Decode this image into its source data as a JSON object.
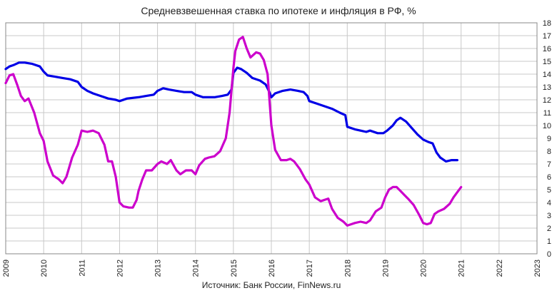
{
  "chart_data": {
    "type": "line",
    "title": "Средневзвешенная ставка по ипотеке и инфляция в РФ, %",
    "source": "Источник: Банк России, FinNews.ru",
    "xlabel": "",
    "ylabel": "",
    "xlim": [
      2009,
      2023
    ],
    "ylim": [
      0,
      18
    ],
    "x_ticks": [
      "2009",
      "2010",
      "2011",
      "2012",
      "2013",
      "2014",
      "2015",
      "2016",
      "2017",
      "2018",
      "2019",
      "2020",
      "2021",
      "2022",
      "2023"
    ],
    "y_ticks": [
      "0",
      "1",
      "2",
      "3",
      "4",
      "5",
      "6",
      "7",
      "8",
      "9",
      "10",
      "11",
      "12",
      "13",
      "14",
      "15",
      "16",
      "17",
      "18"
    ],
    "y_axis_side": "right",
    "grid": true,
    "legend": "none",
    "series": [
      {
        "color": "#0000e6",
        "x": [
          2009.0,
          2009.1,
          2009.2,
          2009.35,
          2009.5,
          2009.7,
          2009.9,
          2010.0,
          2010.1,
          2010.3,
          2010.5,
          2010.7,
          2010.9,
          2011.0,
          2011.15,
          2011.3,
          2011.5,
          2011.7,
          2011.9,
          2012.0,
          2012.2,
          2012.5,
          2012.7,
          2012.9,
          2013.0,
          2013.15,
          2013.3,
          2013.5,
          2013.7,
          2013.9,
          2014.0,
          2014.2,
          2014.5,
          2014.7,
          2014.85,
          2014.95,
          2015.0,
          2015.1,
          2015.2,
          2015.35,
          2015.5,
          2015.7,
          2015.85,
          2015.95,
          2016.0,
          2016.1,
          2016.3,
          2016.5,
          2016.7,
          2016.85,
          2016.95,
          2017.0,
          2017.2,
          2017.4,
          2017.6,
          2017.8,
          2017.95,
          2018.0,
          2018.2,
          2018.35,
          2018.5,
          2018.6,
          2018.8,
          2018.95,
          2019.05,
          2019.2,
          2019.3,
          2019.4,
          2019.55,
          2019.7,
          2019.85,
          2020.0,
          2020.15,
          2020.25,
          2020.35,
          2020.45,
          2020.6,
          2020.75,
          2020.9
        ],
        "y": [
          14.4,
          14.6,
          14.7,
          14.9,
          14.9,
          14.8,
          14.6,
          14.2,
          13.9,
          13.8,
          13.7,
          13.6,
          13.4,
          13.0,
          12.7,
          12.5,
          12.3,
          12.1,
          12.0,
          11.9,
          12.1,
          12.2,
          12.3,
          12.4,
          12.7,
          12.9,
          12.8,
          12.7,
          12.6,
          12.6,
          12.4,
          12.2,
          12.2,
          12.3,
          12.4,
          12.8,
          14.1,
          14.5,
          14.4,
          14.1,
          13.7,
          13.5,
          13.2,
          12.6,
          12.2,
          12.5,
          12.7,
          12.8,
          12.7,
          12.6,
          12.3,
          11.9,
          11.7,
          11.5,
          11.3,
          11.0,
          10.8,
          9.9,
          9.7,
          9.6,
          9.5,
          9.6,
          9.4,
          9.4,
          9.6,
          10.0,
          10.4,
          10.6,
          10.3,
          9.8,
          9.3,
          8.9,
          8.7,
          8.6,
          7.9,
          7.5,
          7.2,
          7.3,
          7.3
        ]
      },
      {
        "color": "#cc00cc",
        "x": [
          2009.0,
          2009.1,
          2009.2,
          2009.3,
          2009.4,
          2009.5,
          2009.6,
          2009.75,
          2009.9,
          2010.0,
          2010.1,
          2010.25,
          2010.4,
          2010.5,
          2010.6,
          2010.75,
          2010.9,
          2011.0,
          2011.15,
          2011.3,
          2011.45,
          2011.6,
          2011.7,
          2011.8,
          2011.9,
          2012.0,
          2012.1,
          2012.25,
          2012.35,
          2012.45,
          2012.5,
          2012.6,
          2012.7,
          2012.85,
          2013.0,
          2013.1,
          2013.25,
          2013.35,
          2013.5,
          2013.6,
          2013.75,
          2013.9,
          2014.0,
          2014.1,
          2014.25,
          2014.35,
          2014.5,
          2014.65,
          2014.8,
          2014.9,
          2015.0,
          2015.05,
          2015.15,
          2015.25,
          2015.35,
          2015.45,
          2015.6,
          2015.7,
          2015.8,
          2015.9,
          2016.0,
          2016.1,
          2016.25,
          2016.4,
          2016.5,
          2016.6,
          2016.75,
          2016.9,
          2017.0,
          2017.15,
          2017.3,
          2017.4,
          2017.5,
          2017.6,
          2017.75,
          2017.9,
          2018.0,
          2018.1,
          2018.2,
          2018.35,
          2018.5,
          2018.6,
          2018.75,
          2018.9,
          2019.0,
          2019.1,
          2019.2,
          2019.3,
          2019.4,
          2019.5,
          2019.6,
          2019.75,
          2019.9,
          2020.0,
          2020.1,
          2020.2,
          2020.3,
          2020.4,
          2020.55,
          2020.7,
          2020.8,
          2020.9,
          2021.0
        ],
        "y": [
          13.3,
          13.9,
          14.0,
          13.2,
          12.3,
          11.9,
          12.1,
          11.0,
          9.4,
          8.8,
          7.2,
          6.1,
          5.8,
          5.5,
          6.0,
          7.5,
          8.5,
          9.6,
          9.5,
          9.6,
          9.4,
          8.5,
          7.2,
          7.2,
          6.0,
          4.0,
          3.7,
          3.6,
          3.6,
          4.2,
          4.9,
          5.8,
          6.5,
          6.5,
          7.0,
          7.2,
          7.0,
          7.3,
          6.5,
          6.2,
          6.5,
          6.5,
          6.2,
          6.9,
          7.4,
          7.5,
          7.6,
          8.0,
          9.0,
          11.0,
          14.5,
          15.8,
          16.7,
          16.9,
          16.0,
          15.3,
          15.7,
          15.6,
          15.1,
          14.0,
          10.0,
          8.1,
          7.3,
          7.3,
          7.4,
          7.2,
          6.6,
          5.8,
          5.4,
          4.4,
          4.1,
          4.2,
          4.3,
          3.5,
          2.8,
          2.5,
          2.2,
          2.3,
          2.4,
          2.5,
          2.4,
          2.6,
          3.3,
          3.6,
          4.4,
          5.0,
          5.2,
          5.2,
          4.9,
          4.6,
          4.3,
          3.8,
          3.0,
          2.4,
          2.3,
          2.4,
          3.1,
          3.3,
          3.5,
          3.9,
          4.4,
          4.8,
          5.2
        ]
      }
    ]
  }
}
